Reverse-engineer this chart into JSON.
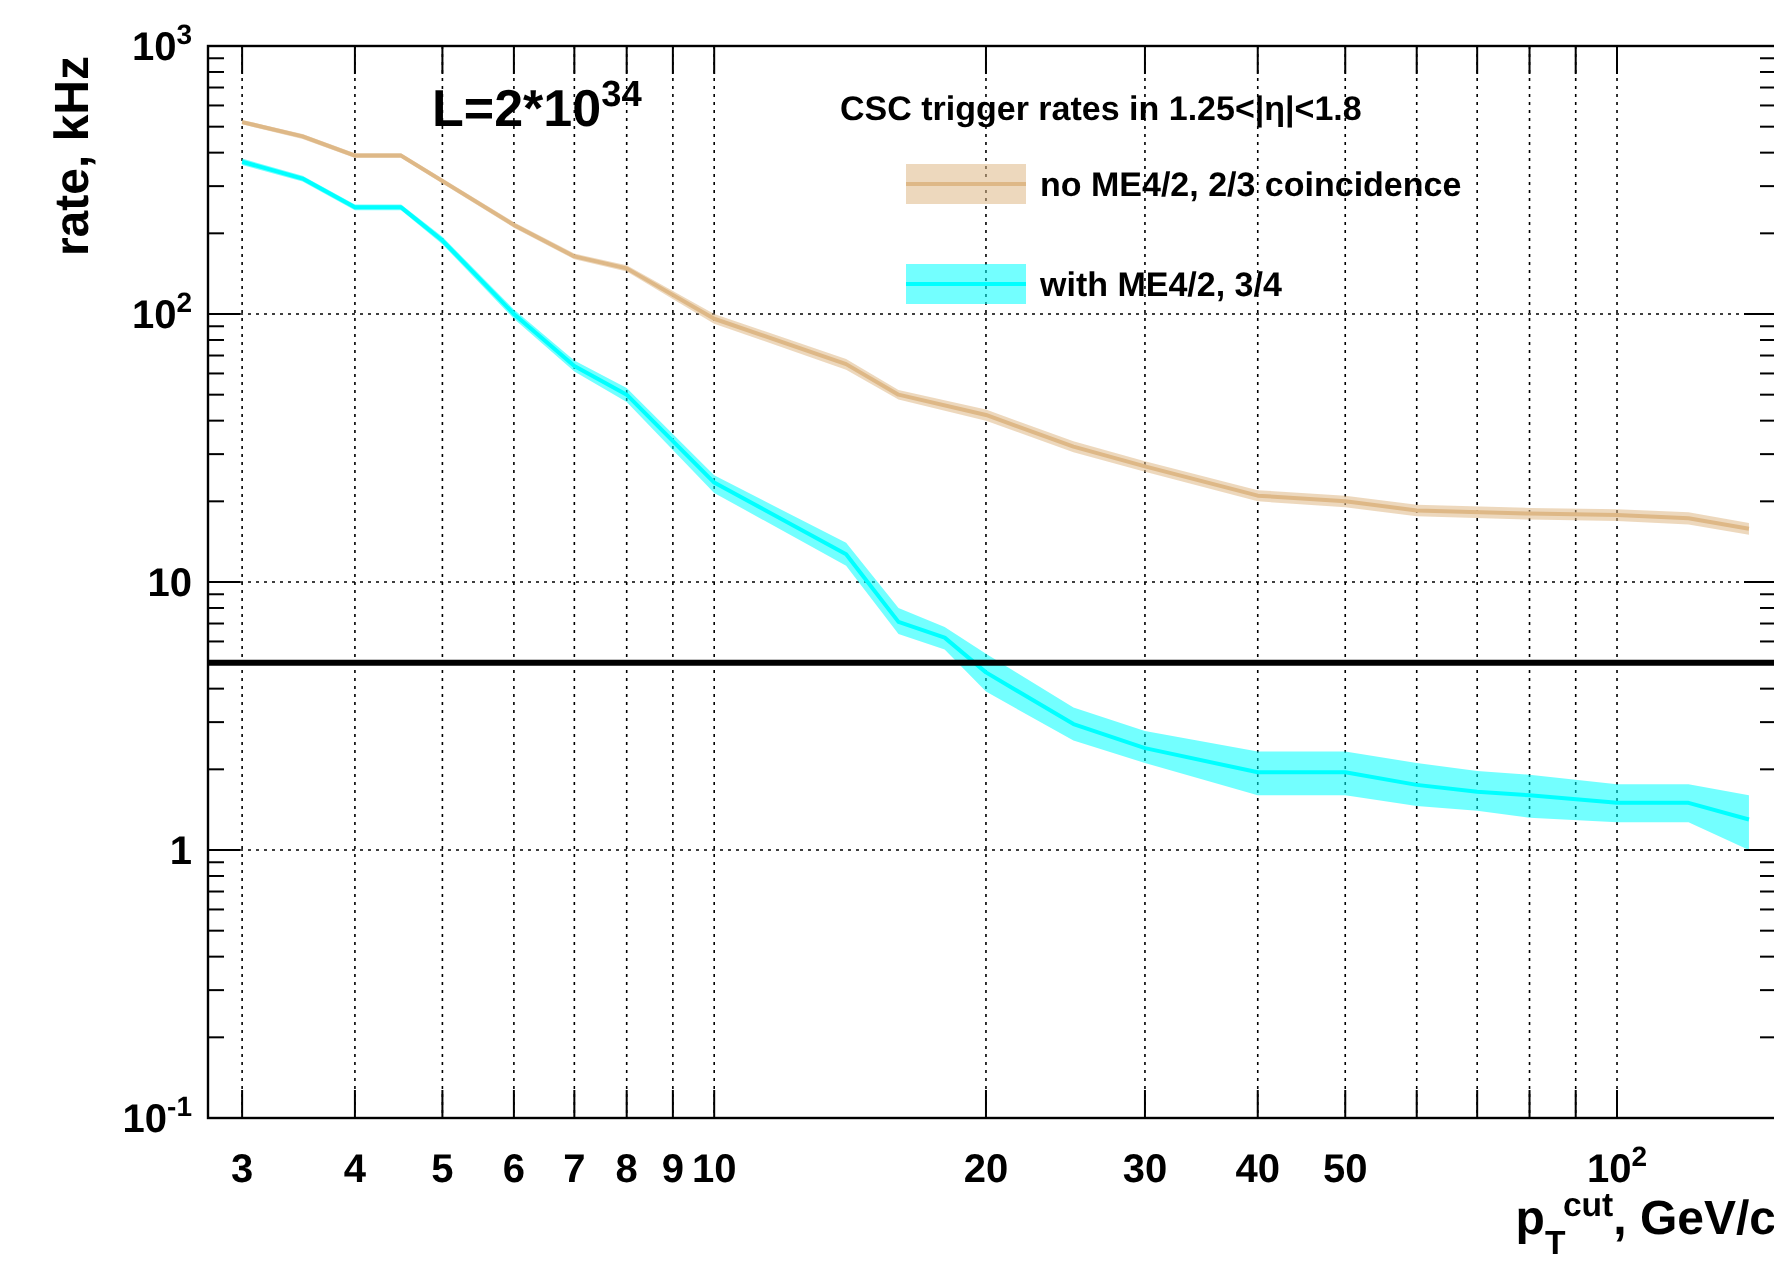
{
  "chart_data": {
    "type": "line",
    "xlabel": "p$_{T}$$^{cut}$, GeV/c",
    "ylabel": "rate, kHz",
    "legend_title": "CSC trigger rates in 1.25<|η|<1.8",
    "annotations": [
      {
        "text": "L=2*10$^{34}$"
      }
    ],
    "log": "xy",
    "grid": true,
    "legend": "top right",
    "xlim": [
      2.75,
      150
    ],
    "ylim": [
      0.1,
      1000
    ],
    "xticks": [
      3,
      4,
      5,
      6,
      7,
      8,
      9,
      10,
      20,
      30,
      40,
      50,
      {
        "value": 60,
        "label": null
      },
      {
        "value": 70,
        "label": null
      },
      {
        "value": 80,
        "label": null
      },
      {
        "value": 90,
        "label": null
      },
      {
        "value": 100,
        "label": "10$^{2}$"
      }
    ],
    "yticks": [
      {
        "value": 0.1,
        "label": "10$^{-1}$"
      },
      1,
      10,
      {
        "value": 100,
        "label": "10$^{2}$"
      },
      {
        "value": 1000,
        "label": "10$^{3}$"
      }
    ],
    "ref_lines": [
      {
        "axis": "y",
        "value": 5,
        "color": "#000000"
      }
    ],
    "series": [
      {
        "name": "no ME4/2, 2/3 coincidence",
        "color": "#deb887",
        "x": [
          3,
          3.5,
          4,
          4.5,
          6,
          7,
          8,
          10,
          14,
          16,
          20,
          25,
          30,
          40,
          50,
          60,
          80,
          100,
          120,
          140
        ],
        "values": [
          520,
          460,
          390,
          390,
          215,
          164,
          148,
          96,
          65,
          50,
          42,
          32,
          27,
          21,
          20,
          18.5,
          18,
          17.8,
          17.3,
          15.8
        ],
        "lower": [
          510,
          450,
          382,
          382,
          210,
          160,
          144,
          92,
          62,
          48,
          40,
          30.5,
          25.8,
          20,
          19,
          17.6,
          17.1,
          16.9,
          16.4,
          15
        ],
        "upper": [
          530,
          470,
          398,
          398,
          220,
          168,
          152,
          100,
          68,
          52,
          44,
          33.5,
          28.2,
          22,
          21,
          19.4,
          18.9,
          18.7,
          18.2,
          16.6
        ]
      },
      {
        "name": "with ME4/2, 3/4",
        "color": "#00ffff",
        "x": [
          3,
          3.5,
          4,
          4.5,
          5,
          6,
          7,
          8,
          10,
          14,
          16,
          18,
          20,
          25,
          30,
          40,
          50,
          60,
          70,
          80,
          100,
          120,
          140
        ],
        "values": [
          370,
          320,
          250,
          250,
          188,
          100,
          64,
          50,
          23.5,
          12.7,
          7.1,
          6.2,
          4.6,
          2.95,
          2.4,
          1.95,
          1.95,
          1.75,
          1.65,
          1.6,
          1.5,
          1.5,
          1.3
        ],
        "lower": [
          360,
          312,
          244,
          244,
          182,
          96,
          61,
          47,
          21.5,
          11.5,
          6.4,
          5.6,
          3.9,
          2.56,
          2.11,
          1.6,
          1.6,
          1.46,
          1.4,
          1.32,
          1.27,
          1.27,
          1.0
        ],
        "upper": [
          380,
          328,
          256,
          256,
          194,
          104,
          67,
          53,
          25,
          14,
          8,
          6.8,
          5.4,
          3.4,
          2.78,
          2.33,
          2.33,
          2.11,
          1.97,
          1.91,
          1.76,
          1.76,
          1.6
        ]
      }
    ]
  }
}
